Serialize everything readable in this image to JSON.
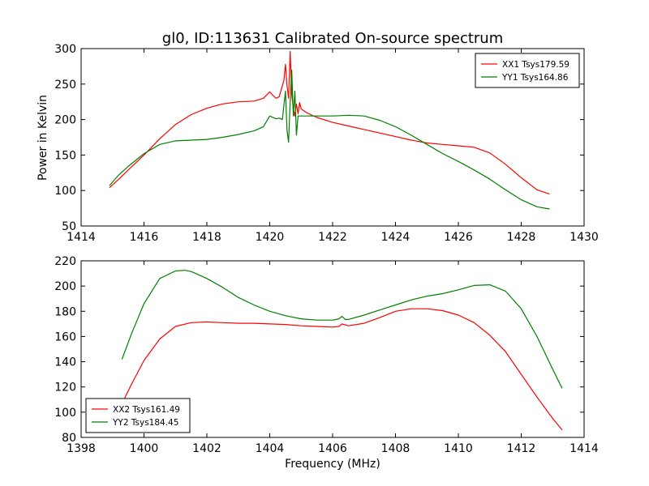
{
  "figure": {
    "title": "gl0, ID:113631 Calibrated On-source spectrum",
    "background": "#ffffff"
  },
  "chart_data": [
    {
      "type": "line",
      "title": "gl0, ID:113631 Calibrated On-source spectrum",
      "xlabel": "",
      "ylabel": "Power in Kelvin",
      "xlim": [
        1414,
        1430
      ],
      "ylim": [
        50,
        300
      ],
      "xticks": [
        1414,
        1416,
        1418,
        1420,
        1422,
        1424,
        1426,
        1428,
        1430
      ],
      "yticks": [
        50,
        100,
        150,
        200,
        250,
        300
      ],
      "grid": false,
      "legend": "top-right",
      "series": [
        {
          "name": "XX1 Tsys179.59",
          "color": "#ff0000",
          "x": [
            1414.9,
            1415.2,
            1415.5,
            1416.0,
            1416.5,
            1417.0,
            1417.5,
            1418.0,
            1418.5,
            1419.0,
            1419.5,
            1419.8,
            1420.0,
            1420.1,
            1420.2,
            1420.3,
            1420.45,
            1420.5,
            1420.55,
            1420.6,
            1420.65,
            1420.7,
            1420.75,
            1420.8,
            1420.85,
            1420.9,
            1420.95,
            1421.0,
            1421.2,
            1421.5,
            1422.0,
            1422.5,
            1423.0,
            1423.5,
            1424.0,
            1424.5,
            1425.0,
            1425.5,
            1426.0,
            1426.5,
            1427.0,
            1427.5,
            1428.0,
            1428.5,
            1428.9
          ],
          "y": [
            104,
            116,
            129,
            150,
            173,
            193,
            207,
            216,
            222,
            225,
            226,
            230,
            239,
            234,
            230,
            232,
            255,
            278,
            248,
            230,
            296,
            235,
            215,
            205,
            222,
            208,
            224,
            215,
            209,
            203,
            196,
            191,
            186,
            181,
            176,
            171,
            167,
            165,
            163,
            161,
            153,
            137,
            118,
            101,
            95
          ]
        },
        {
          "name": "YY1 Tsys164.86",
          "color": "#008000",
          "x": [
            1414.9,
            1415.2,
            1415.5,
            1416.0,
            1416.5,
            1417.0,
            1417.5,
            1418.0,
            1418.5,
            1419.0,
            1419.5,
            1419.8,
            1420.0,
            1420.2,
            1420.3,
            1420.4,
            1420.5,
            1420.55,
            1420.6,
            1420.65,
            1420.7,
            1420.75,
            1420.8,
            1420.85,
            1420.9,
            1421.0,
            1421.5,
            1422.0,
            1422.5,
            1423.0,
            1423.5,
            1424.0,
            1424.5,
            1425.0,
            1425.5,
            1426.0,
            1426.5,
            1427.0,
            1427.5,
            1428.0,
            1428.5,
            1428.9
          ],
          "y": [
            107,
            122,
            134,
            152,
            165,
            170,
            171,
            172,
            175,
            179,
            184,
            190,
            205,
            201,
            202,
            200,
            240,
            185,
            168,
            225,
            270,
            205,
            240,
            178,
            205,
            205,
            205,
            205,
            206,
            205,
            199,
            190,
            178,
            165,
            152,
            141,
            129,
            116,
            101,
            87,
            77,
            74
          ]
        }
      ]
    },
    {
      "type": "line",
      "title": "",
      "xlabel": "Frequency (MHz)",
      "ylabel": "",
      "xlim": [
        1398,
        1414
      ],
      "ylim": [
        80,
        220
      ],
      "xticks": [
        1398,
        1400,
        1402,
        1404,
        1406,
        1408,
        1410,
        1412,
        1414
      ],
      "yticks": [
        80,
        100,
        120,
        140,
        160,
        180,
        200,
        220
      ],
      "grid": false,
      "legend": "bottom-left",
      "series": [
        {
          "name": "XX2 Tsys161.49",
          "color": "#ff0000",
          "x": [
            1399.3,
            1399.6,
            1400.0,
            1400.5,
            1401.0,
            1401.5,
            1402.0,
            1402.5,
            1403.0,
            1403.5,
            1404.0,
            1404.5,
            1405.0,
            1405.5,
            1406.0,
            1406.2,
            1406.3,
            1406.5,
            1407.0,
            1407.5,
            1408.0,
            1408.5,
            1409.0,
            1409.5,
            1410.0,
            1410.5,
            1411.0,
            1411.5,
            1412.0,
            1412.5,
            1413.0,
            1413.3
          ],
          "y": [
            107,
            122,
            141,
            158,
            168,
            171,
            171.5,
            171,
            170.5,
            170.5,
            170,
            169.5,
            168.5,
            168,
            167.5,
            168,
            170,
            168.5,
            170.5,
            175,
            180,
            182,
            182,
            180.5,
            177,
            171,
            161,
            148,
            130,
            112,
            95,
            86
          ]
        },
        {
          "name": "YY2 Tsys184.45",
          "color": "#008000",
          "x": [
            1399.3,
            1399.6,
            1400.0,
            1400.5,
            1401.0,
            1401.3,
            1401.5,
            1402.0,
            1402.5,
            1403.0,
            1403.5,
            1404.0,
            1404.5,
            1405.0,
            1405.5,
            1406.0,
            1406.2,
            1406.3,
            1406.4,
            1406.5,
            1407.0,
            1407.5,
            1408.0,
            1408.5,
            1409.0,
            1409.5,
            1410.0,
            1410.5,
            1411.0,
            1411.5,
            1412.0,
            1412.5,
            1413.0,
            1413.3
          ],
          "y": [
            142,
            162,
            186,
            206,
            212,
            212.5,
            211.5,
            206,
            199,
            191,
            185,
            180,
            176.5,
            174,
            173,
            173,
            174,
            176,
            173.5,
            173.5,
            177,
            181,
            185,
            189,
            192,
            194,
            197,
            200.5,
            201,
            196,
            182,
            160,
            134,
            119
          ]
        }
      ]
    }
  ]
}
